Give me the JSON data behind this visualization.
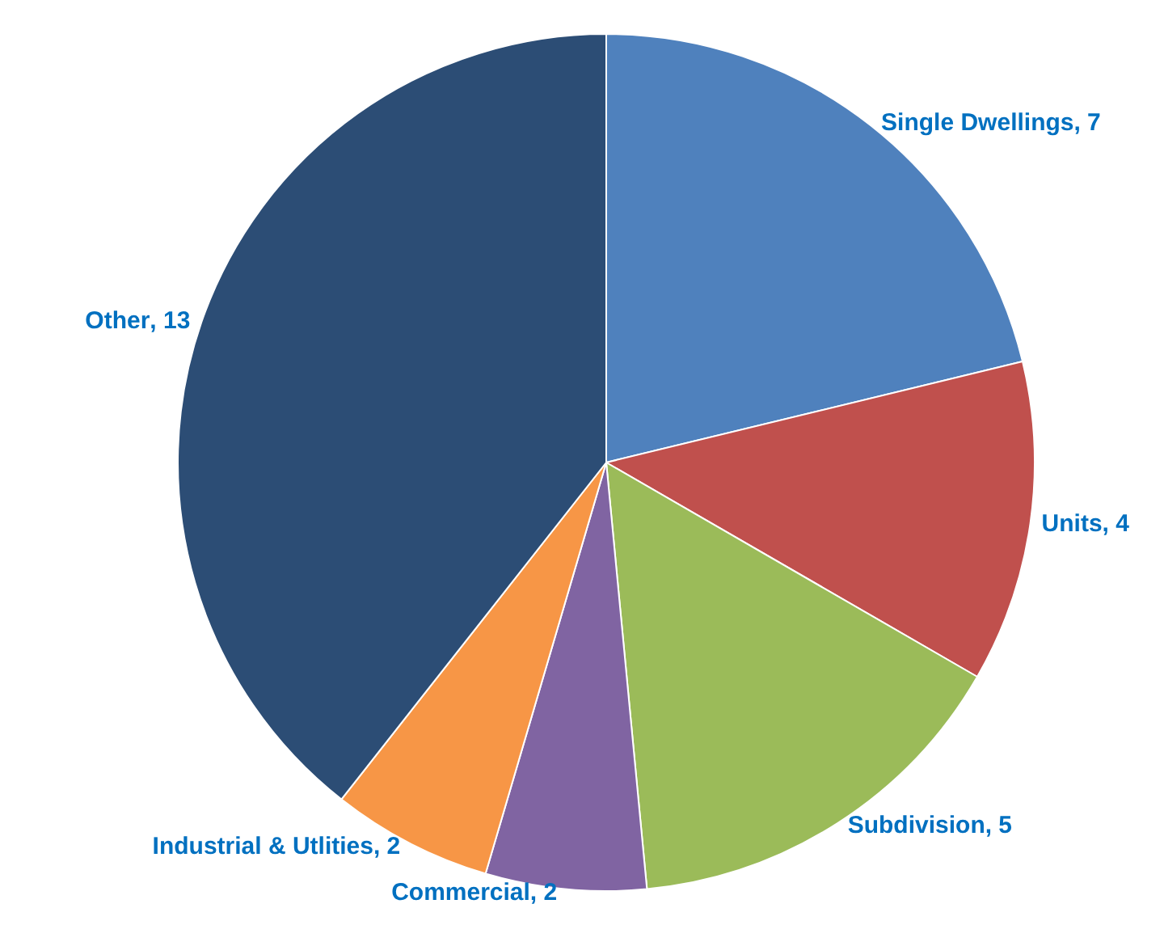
{
  "chart_data": {
    "type": "pie",
    "categories": [
      "Single Dwellings",
      "Units",
      "Subdivision",
      "Commercial",
      "Industrial & Utlities",
      "Other"
    ],
    "values": [
      7,
      4,
      5,
      2,
      2,
      13
    ],
    "value_labels": [
      ", 7",
      ", 4",
      ", 5",
      ", 2",
      ", 2",
      ", 13"
    ],
    "colors": [
      "#4f81bd",
      "#c0504d",
      "#9bbb59",
      "#8064a2",
      "#f79646",
      "#2c4d75"
    ],
    "legend": false
  }
}
